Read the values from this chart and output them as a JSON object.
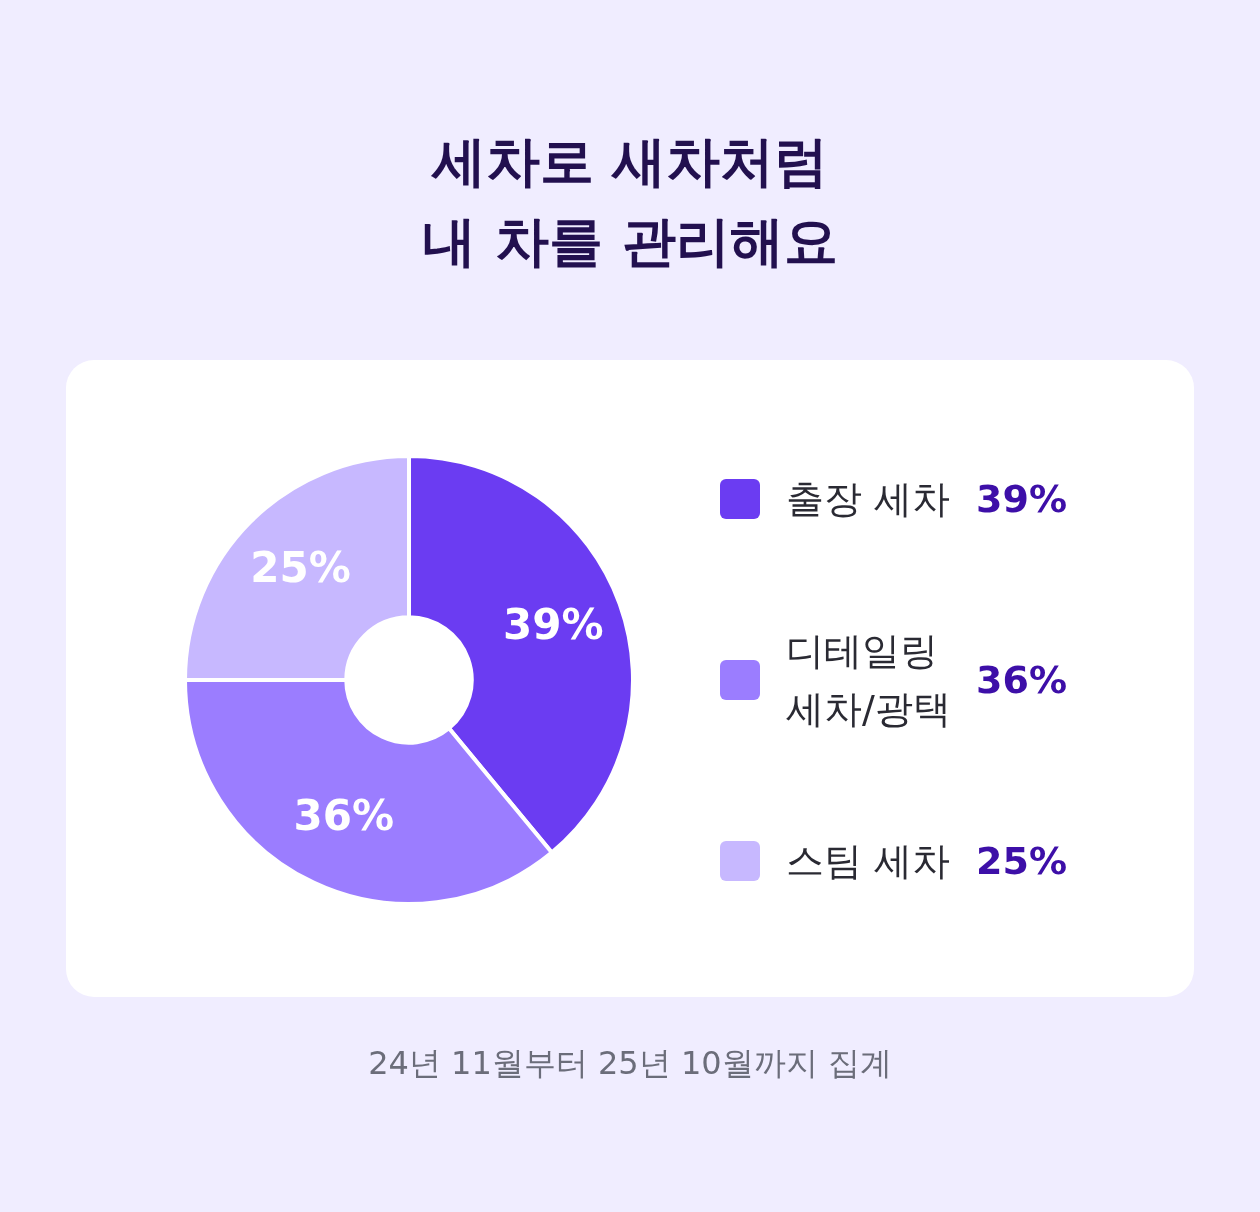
{
  "chart_data": {
    "type": "donut",
    "title": "세차로 새차처럼\n내 차를 관리해요",
    "categories": [
      "출장 세차",
      "디테일링 세차/광택",
      "스팀 세차"
    ],
    "values": [
      39,
      36,
      25
    ],
    "colors": [
      "#6b3cf2",
      "#9b7dff",
      "#c7b8ff"
    ],
    "value_labels": [
      "39%",
      "36%",
      "25%"
    ],
    "legend": "right",
    "annotations": [
      "24년 11월부터 25년 10월까지 집계"
    ]
  }
}
